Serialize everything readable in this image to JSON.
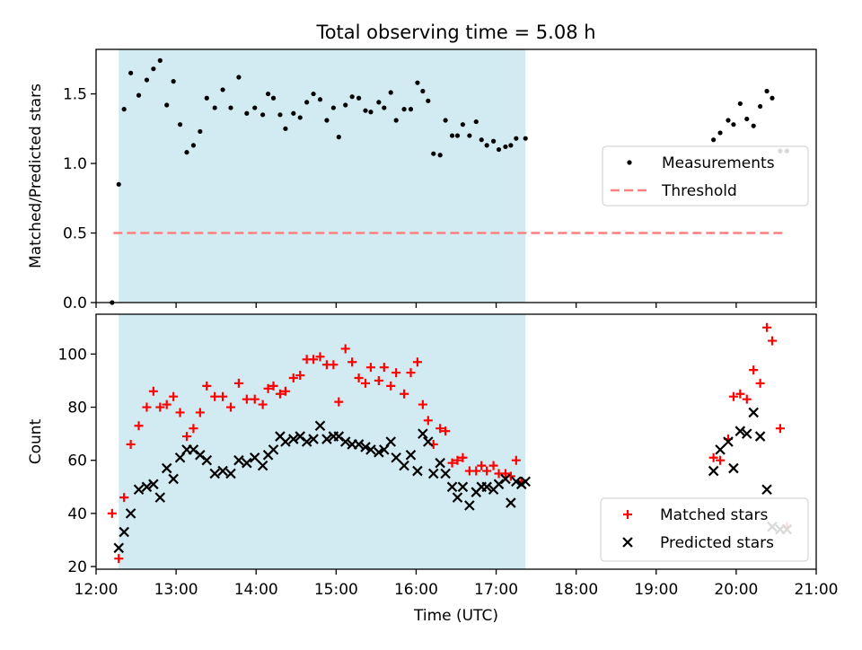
{
  "title": "Total observing time = 5.08 h",
  "colors": {
    "shade": "#add8e6",
    "measurement": "#000000",
    "threshold": "#ff7f7f",
    "matched": "#ff0000",
    "predicted": "#000000"
  },
  "chart_data": [
    {
      "type": "scatter",
      "title": "Total observing time = 5.08 h",
      "xlabel": "",
      "ylabel": "Matched/Predicted stars",
      "xlim": [
        "12:00",
        "21:00"
      ],
      "ylim": [
        0,
        1.82
      ],
      "yticks": [
        "0.0",
        "0.5",
        "1.0",
        "1.5"
      ],
      "shaded_interval": [
        "12:17",
        "17:22"
      ],
      "legend_position": "center-right",
      "threshold": {
        "name": "Threshold",
        "value": 0.5,
        "x_range": [
          "12:13",
          "20:38"
        ],
        "style": "dashed"
      },
      "series": [
        {
          "name": "Measurements",
          "x": [
            "12:12",
            "12:17",
            "12:21",
            "12:26",
            "12:32",
            "12:38",
            "12:43",
            "12:48",
            "12:53",
            "12:58",
            "13:03",
            "13:08",
            "13:13",
            "13:18",
            "13:23",
            "13:29",
            "13:35",
            "13:41",
            "13:47",
            "13:53",
            "13:59",
            "14:05",
            "14:09",
            "14:13",
            "14:18",
            "14:22",
            "14:28",
            "14:33",
            "14:38",
            "14:43",
            "14:48",
            "14:53",
            "14:58",
            "15:02",
            "15:07",
            "15:12",
            "15:17",
            "15:22",
            "15:26",
            "15:32",
            "15:36",
            "15:41",
            "15:45",
            "15:51",
            "15:56",
            "16:01",
            "16:05",
            "16:09",
            "16:13",
            "16:18",
            "16:22",
            "16:27",
            "16:31",
            "16:35",
            "16:40",
            "16:45",
            "16:49",
            "16:53",
            "16:58",
            "17:02",
            "17:07",
            "17:11",
            "17:15",
            "17:22",
            "19:43",
            "19:48",
            "19:54",
            "19:58",
            "20:03",
            "20:08",
            "20:13",
            "20:18",
            "20:23",
            "20:27",
            "20:33",
            "20:38"
          ],
          "y": [
            0.0,
            0.85,
            1.39,
            1.65,
            1.49,
            1.6,
            1.68,
            1.74,
            1.42,
            1.59,
            1.28,
            1.08,
            1.13,
            1.23,
            1.47,
            1.4,
            1.53,
            1.4,
            1.62,
            1.36,
            1.4,
            1.35,
            1.5,
            1.47,
            1.35,
            1.25,
            1.36,
            1.33,
            1.44,
            1.5,
            1.46,
            1.31,
            1.4,
            1.19,
            1.42,
            1.48,
            1.47,
            1.38,
            1.37,
            1.44,
            1.4,
            1.51,
            1.31,
            1.39,
            1.39,
            1.58,
            1.52,
            1.45,
            1.07,
            1.06,
            1.31,
            1.2,
            1.2,
            1.28,
            1.2,
            1.3,
            1.17,
            1.13,
            1.16,
            1.1,
            1.12,
            1.13,
            1.18,
            1.18,
            1.17,
            1.22,
            1.31,
            1.28,
            1.43,
            1.32,
            1.27,
            1.41,
            1.52,
            1.47,
            1.09,
            1.09
          ]
        }
      ]
    },
    {
      "type": "scatter",
      "xlabel": "Time (UTC)",
      "ylabel": "Count",
      "xlim": [
        "12:00",
        "21:00"
      ],
      "ylim": [
        19,
        115
      ],
      "xticks": [
        "12:00",
        "13:00",
        "14:00",
        "15:00",
        "16:00",
        "17:00",
        "18:00",
        "19:00",
        "20:00",
        "21:00"
      ],
      "yticks": [
        "20",
        "40",
        "60",
        "80",
        "100"
      ],
      "shaded_interval": [
        "12:17",
        "17:22"
      ],
      "legend_position": "lower-right",
      "series": [
        {
          "name": "Matched stars",
          "marker": "+",
          "x": [
            "12:12",
            "12:17",
            "12:21",
            "12:26",
            "12:32",
            "12:38",
            "12:43",
            "12:48",
            "12:53",
            "12:58",
            "13:03",
            "13:08",
            "13:13",
            "13:18",
            "13:23",
            "13:29",
            "13:35",
            "13:41",
            "13:47",
            "13:53",
            "13:59",
            "14:05",
            "14:09",
            "14:13",
            "14:18",
            "14:22",
            "14:28",
            "14:33",
            "14:38",
            "14:43",
            "14:48",
            "14:53",
            "14:58",
            "15:02",
            "15:07",
            "15:12",
            "15:17",
            "15:22",
            "15:26",
            "15:32",
            "15:36",
            "15:41",
            "15:45",
            "15:51",
            "15:56",
            "16:01",
            "16:05",
            "16:09",
            "16:13",
            "16:18",
            "16:22",
            "16:27",
            "16:31",
            "16:35",
            "16:40",
            "16:45",
            "16:49",
            "16:53",
            "16:58",
            "17:02",
            "17:07",
            "17:11",
            "17:15",
            "17:19",
            "19:43",
            "19:48",
            "19:54",
            "19:58",
            "20:03",
            "20:08",
            "20:13",
            "20:18",
            "20:23",
            "20:27",
            "20:33",
            "20:38"
          ],
          "y": [
            40,
            23,
            46,
            66,
            73,
            80,
            86,
            80,
            81,
            84,
            78,
            69,
            72,
            78,
            88,
            84,
            84,
            80,
            89,
            83,
            83,
            81,
            87,
            88,
            85,
            86,
            91,
            92,
            98,
            98,
            99,
            96,
            96,
            82,
            102,
            97,
            91,
            89,
            95,
            90,
            95,
            88,
            93,
            85,
            93,
            97,
            81,
            75,
            66,
            72,
            71,
            59,
            60,
            61,
            56,
            56,
            58,
            56,
            58,
            55,
            55,
            54,
            60,
            52,
            61,
            60,
            68,
            84,
            85,
            83,
            94,
            89,
            110,
            105,
            72,
            35
          ]
        },
        {
          "name": "Predicted stars",
          "marker": "x",
          "x": [
            "12:17",
            "12:21",
            "12:26",
            "12:32",
            "12:38",
            "12:43",
            "12:48",
            "12:53",
            "12:58",
            "13:03",
            "13:08",
            "13:13",
            "13:18",
            "13:23",
            "13:29",
            "13:35",
            "13:41",
            "13:47",
            "13:53",
            "13:59",
            "14:05",
            "14:09",
            "14:13",
            "14:18",
            "14:22",
            "14:28",
            "14:33",
            "14:38",
            "14:43",
            "14:48",
            "14:53",
            "14:58",
            "15:02",
            "15:07",
            "15:12",
            "15:17",
            "15:22",
            "15:26",
            "15:32",
            "15:36",
            "15:41",
            "15:45",
            "15:51",
            "15:56",
            "16:01",
            "16:05",
            "16:09",
            "16:13",
            "16:18",
            "16:22",
            "16:27",
            "16:31",
            "16:35",
            "16:40",
            "16:45",
            "16:49",
            "16:53",
            "16:58",
            "17:02",
            "17:07",
            "17:11",
            "17:15",
            "17:19",
            "17:22",
            "19:43",
            "19:48",
            "19:54",
            "19:58",
            "20:03",
            "20:08",
            "20:13",
            "20:18",
            "20:23",
            "20:27",
            "20:33",
            "20:38"
          ],
          "y": [
            27,
            33,
            40,
            49,
            50,
            51,
            46,
            57,
            53,
            61,
            64,
            64,
            62,
            60,
            55,
            56,
            55,
            60,
            59,
            61,
            58,
            62,
            64,
            69,
            67,
            68,
            69,
            67,
            68,
            73,
            68,
            69,
            69,
            67,
            66,
            66,
            65,
            64,
            63,
            64,
            67,
            61,
            58,
            62,
            56,
            70,
            67,
            55,
            59,
            55,
            50,
            46,
            50,
            43,
            48,
            50,
            50,
            49,
            51,
            53,
            44,
            52,
            51,
            52,
            56,
            64,
            67,
            57,
            71,
            70,
            78,
            69,
            49,
            35,
            34,
            34
          ]
        }
      ]
    }
  ]
}
